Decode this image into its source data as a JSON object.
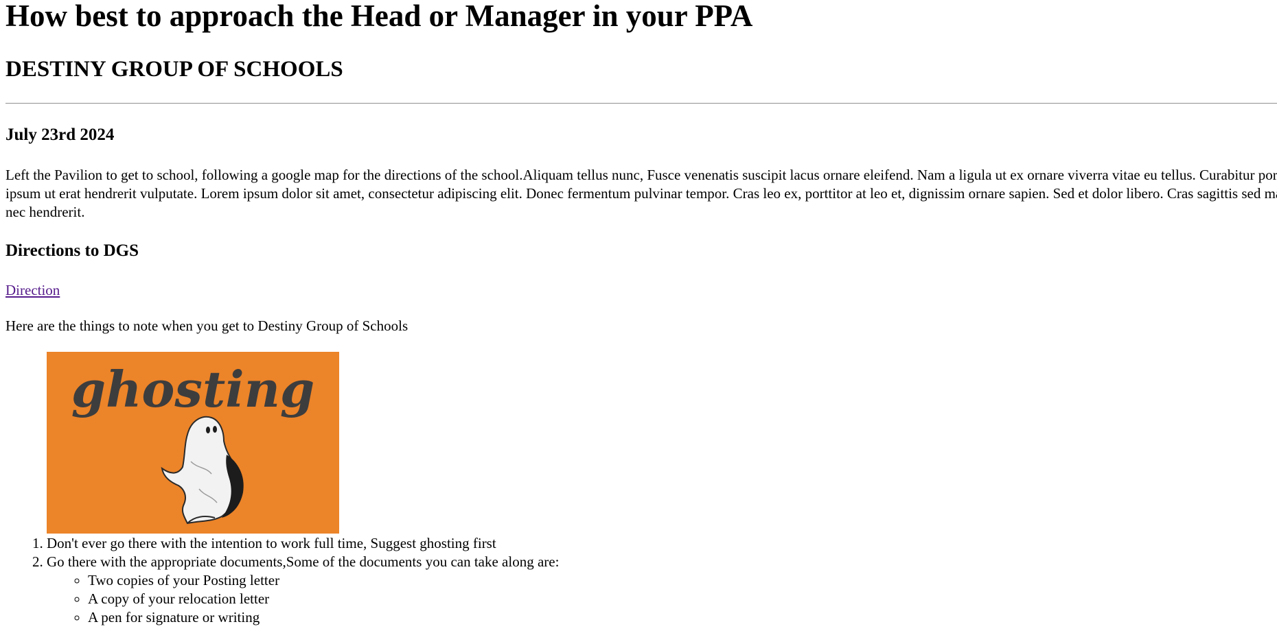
{
  "header": {
    "title": "How best to approach the Head or Manager in your PPA",
    "subtitle": "DESTINY GROUP OF SCHOOLS"
  },
  "post": {
    "date": "July 23rd 2024",
    "paragraph": "Left the Pavilion to get to school, following a google map for the directions of the school.Aliquam tellus nunc, Fusce venenatis suscipit lacus ornare eleifend. Nam a ligula ut ex ornare viverra vitae eu tellus. Curabitur porttitor ipsum ut erat hendrerit vulputate. Lorem ipsum dolor sit amet, consectetur adipiscing elit. Donec fermentum pulvinar tempor. Cras leo ex, porttitor at leo et, dignissim ornare sapien. Sed et dolor libero. Cras sagittis sed mauris nec hendrerit."
  },
  "directions": {
    "heading": "Directions to DGS",
    "link_label": "Direction",
    "link_color": "#551a8b"
  },
  "note": "Here are the things to note when you get to Destiny Group of Schools",
  "image": {
    "caption_word": "ghosting",
    "background": "#ec8429",
    "icon": "ghost-icon"
  },
  "list": {
    "items": [
      "Don't ever go there with the intention to work full time, Suggest ghosting first",
      "Go there with the appropriate documents,Some of the documents you can take along are:"
    ],
    "sub_items": [
      "Two copies of your Posting letter",
      "A copy of your relocation letter",
      "A pen for signature or writing"
    ]
  }
}
